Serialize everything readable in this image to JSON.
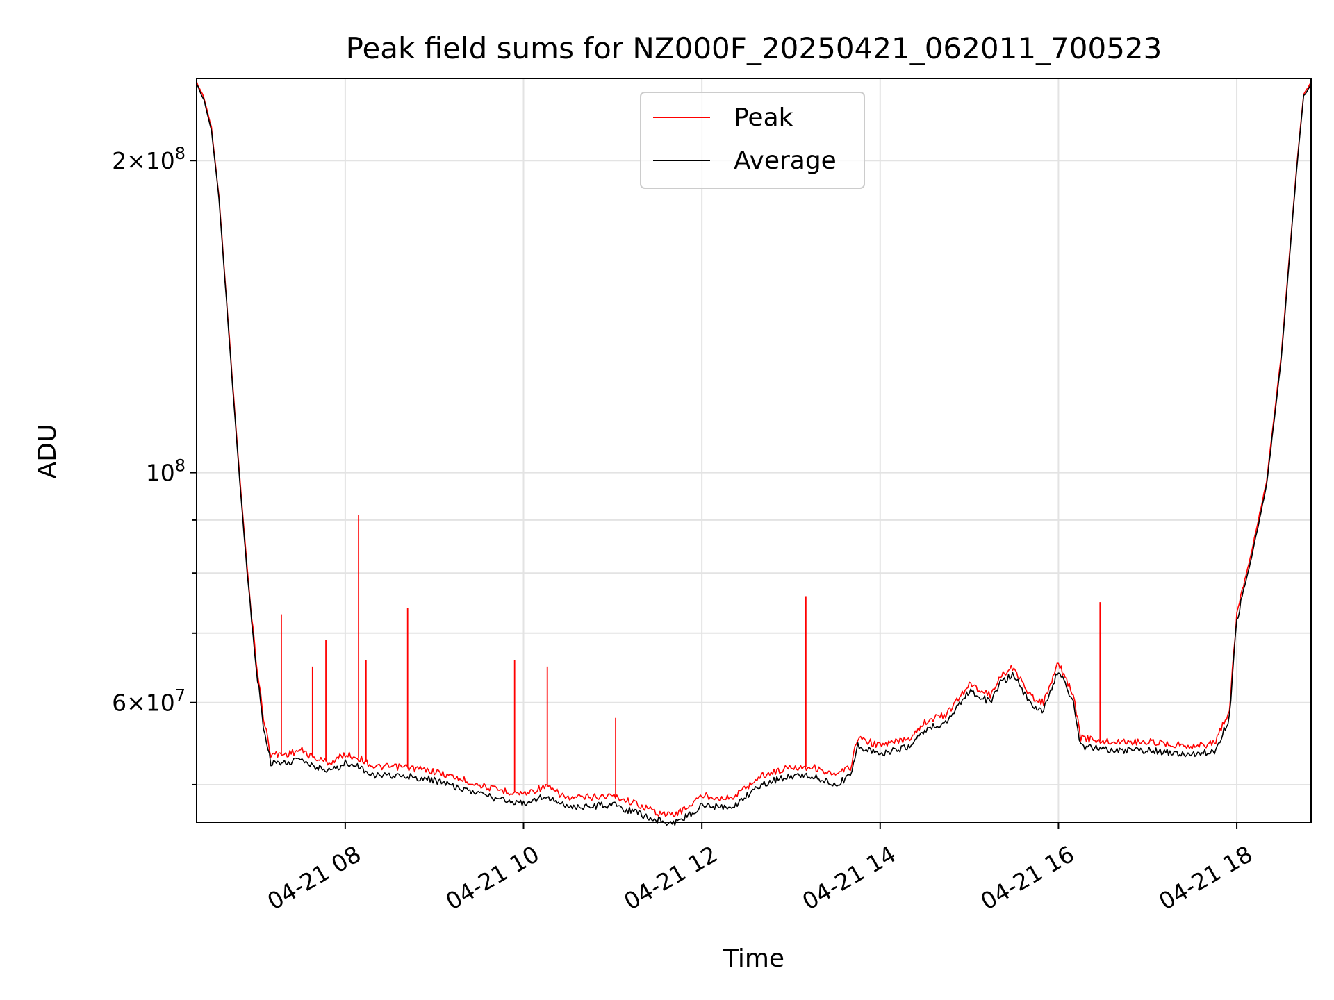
{
  "chart_data": {
    "type": "line",
    "title": "Peak field sums for NZ000F_20250421_062011_700523",
    "xlabel": "Time",
    "ylabel": "ADU",
    "y_scale": "log",
    "ylim": [
      46000000,
      240000000
    ],
    "xlim": [
      "2025-04-21 06:20",
      "2025-04-21 18:50"
    ],
    "grid": true,
    "legend_position": "top-center",
    "x_ticks": [
      {
        "t": "2025-04-21 08:00",
        "label": "04-21 08"
      },
      {
        "t": "2025-04-21 10:00",
        "label": "04-21 10"
      },
      {
        "t": "2025-04-21 12:00",
        "label": "04-21 12"
      },
      {
        "t": "2025-04-21 14:00",
        "label": "04-21 14"
      },
      {
        "t": "2025-04-21 16:00",
        "label": "04-21 16"
      },
      {
        "t": "2025-04-21 18:00",
        "label": "04-21 18"
      }
    ],
    "y_major_ticks": [
      {
        "value": 200000000,
        "mantissa": "2",
        "exp": "8"
      },
      {
        "value": 100000000,
        "mantissa": "",
        "exp": "8"
      },
      {
        "value": 60000000,
        "mantissa": "6",
        "exp": "7"
      }
    ],
    "y_minor_ticks": [
      50000000,
      70000000,
      80000000,
      90000000
    ],
    "series": [
      {
        "name": "Peak",
        "color": "#ff0000",
        "points": [
          [
            "2025-04-21 06:20",
            238000000
          ],
          [
            "2025-04-21 06:25",
            230000000
          ],
          [
            "2025-04-21 06:30",
            215000000
          ],
          [
            "2025-04-21 06:35",
            185000000
          ],
          [
            "2025-04-21 06:40",
            148000000
          ],
          [
            "2025-04-21 06:45",
            118000000
          ],
          [
            "2025-04-21 06:50",
            95000000
          ],
          [
            "2025-04-21 06:55",
            78000000
          ],
          [
            "2025-04-21 07:00",
            66000000
          ],
          [
            "2025-04-21 07:05",
            58000000
          ],
          [
            "2025-04-21 07:10",
            53500000
          ],
          [
            "2025-04-21 07:20",
            53500000
          ],
          [
            "2025-04-21 07:30",
            54000000
          ],
          [
            "2025-04-21 07:40",
            53000000
          ],
          [
            "2025-04-21 07:50",
            52500000
          ],
          [
            "2025-04-21 08:00",
            53500000
          ],
          [
            "2025-04-21 08:10",
            53000000
          ],
          [
            "2025-04-21 08:20",
            52000000
          ],
          [
            "2025-04-21 08:40",
            52000000
          ],
          [
            "2025-04-21 09:00",
            51500000
          ],
          [
            "2025-04-21 09:20",
            50500000
          ],
          [
            "2025-04-21 09:40",
            49500000
          ],
          [
            "2025-04-21 10:00",
            49000000
          ],
          [
            "2025-04-21 10:15",
            49800000
          ],
          [
            "2025-04-21 10:30",
            48500000
          ],
          [
            "2025-04-21 11:00",
            48800000
          ],
          [
            "2025-04-21 11:15",
            48000000
          ],
          [
            "2025-04-21 11:30",
            47000000
          ],
          [
            "2025-04-21 11:40",
            46700000
          ],
          [
            "2025-04-21 11:50",
            47500000
          ],
          [
            "2025-04-21 12:00",
            48800000
          ],
          [
            "2025-04-21 12:20",
            48500000
          ],
          [
            "2025-04-21 12:40",
            51000000
          ],
          [
            "2025-04-21 13:00",
            52000000
          ],
          [
            "2025-04-21 13:15",
            52000000
          ],
          [
            "2025-04-21 13:30",
            51000000
          ],
          [
            "2025-04-21 13:40",
            52000000
          ],
          [
            "2025-04-21 13:45",
            55500000
          ],
          [
            "2025-04-21 14:00",
            54500000
          ],
          [
            "2025-04-21 14:20",
            55500000
          ],
          [
            "2025-04-21 14:30",
            57500000
          ],
          [
            "2025-04-21 14:45",
            58500000
          ],
          [
            "2025-04-21 15:00",
            62500000
          ],
          [
            "2025-04-21 15:15",
            61000000
          ],
          [
            "2025-04-21 15:20",
            63500000
          ],
          [
            "2025-04-21 15:30",
            65000000
          ],
          [
            "2025-04-21 15:40",
            61000000
          ],
          [
            "2025-04-21 15:50",
            60000000
          ],
          [
            "2025-04-21 16:00",
            65500000
          ],
          [
            "2025-04-21 16:10",
            61000000
          ],
          [
            "2025-04-21 16:15",
            55500000
          ],
          [
            "2025-04-21 16:30",
            55000000
          ],
          [
            "2025-04-21 17:00",
            55000000
          ],
          [
            "2025-04-21 17:30",
            54500000
          ],
          [
            "2025-04-21 17:45",
            54800000
          ],
          [
            "2025-04-21 17:55",
            59000000
          ],
          [
            "2025-04-21 18:00",
            73000000
          ],
          [
            "2025-04-21 18:10",
            84000000
          ],
          [
            "2025-04-21 18:20",
            98000000
          ],
          [
            "2025-04-21 18:30",
            130000000
          ],
          [
            "2025-04-21 18:40",
            195000000
          ],
          [
            "2025-04-21 18:45",
            232000000
          ],
          [
            "2025-04-21 18:50",
            238000000
          ]
        ],
        "spikes": [
          [
            "2025-04-21 07:17",
            73000000
          ],
          [
            "2025-04-21 07:38",
            65000000
          ],
          [
            "2025-04-21 07:47",
            69000000
          ],
          [
            "2025-04-21 08:09",
            91000000
          ],
          [
            "2025-04-21 08:14",
            66000000
          ],
          [
            "2025-04-21 08:42",
            74000000
          ],
          [
            "2025-04-21 09:54",
            66000000
          ],
          [
            "2025-04-21 10:16",
            65000000
          ],
          [
            "2025-04-21 11:02",
            58000000
          ],
          [
            "2025-04-21 13:10",
            76000000
          ],
          [
            "2025-04-21 16:28",
            75000000
          ]
        ]
      },
      {
        "name": "Average",
        "color": "#000000",
        "points": [
          [
            "2025-04-21 06:20",
            237000000
          ],
          [
            "2025-04-21 06:25",
            229000000
          ],
          [
            "2025-04-21 06:30",
            214000000
          ],
          [
            "2025-04-21 06:35",
            184000000
          ],
          [
            "2025-04-21 06:40",
            147000000
          ],
          [
            "2025-04-21 06:45",
            117000000
          ],
          [
            "2025-04-21 06:50",
            94000000
          ],
          [
            "2025-04-21 06:55",
            77000000
          ],
          [
            "2025-04-21 07:00",
            65000000
          ],
          [
            "2025-04-21 07:05",
            57000000
          ],
          [
            "2025-04-21 07:10",
            52500000
          ],
          [
            "2025-04-21 07:20",
            52500000
          ],
          [
            "2025-04-21 07:30",
            53000000
          ],
          [
            "2025-04-21 07:40",
            52000000
          ],
          [
            "2025-04-21 07:50",
            51500000
          ],
          [
            "2025-04-21 08:00",
            52500000
          ],
          [
            "2025-04-21 08:10",
            52000000
          ],
          [
            "2025-04-21 08:20",
            51000000
          ],
          [
            "2025-04-21 08:40",
            51000000
          ],
          [
            "2025-04-21 09:00",
            50500000
          ],
          [
            "2025-04-21 09:20",
            49500000
          ],
          [
            "2025-04-21 09:40",
            48500000
          ],
          [
            "2025-04-21 10:00",
            48000000
          ],
          [
            "2025-04-21 10:15",
            48800000
          ],
          [
            "2025-04-21 10:30",
            47500000
          ],
          [
            "2025-04-21 11:00",
            47800000
          ],
          [
            "2025-04-21 11:15",
            47000000
          ],
          [
            "2025-04-21 11:30",
            46200000
          ],
          [
            "2025-04-21 11:40",
            45900000
          ],
          [
            "2025-04-21 11:50",
            46600000
          ],
          [
            "2025-04-21 12:00",
            47800000
          ],
          [
            "2025-04-21 12:20",
            47500000
          ],
          [
            "2025-04-21 12:40",
            50000000
          ],
          [
            "2025-04-21 13:00",
            51000000
          ],
          [
            "2025-04-21 13:15",
            51000000
          ],
          [
            "2025-04-21 13:30",
            50000000
          ],
          [
            "2025-04-21 13:40",
            51000000
          ],
          [
            "2025-04-21 13:45",
            54500000
          ],
          [
            "2025-04-21 14:00",
            53500000
          ],
          [
            "2025-04-21 14:20",
            54500000
          ],
          [
            "2025-04-21 14:30",
            56500000
          ],
          [
            "2025-04-21 14:45",
            57500000
          ],
          [
            "2025-04-21 15:00",
            61500000
          ],
          [
            "2025-04-21 15:15",
            60000000
          ],
          [
            "2025-04-21 15:20",
            62500000
          ],
          [
            "2025-04-21 15:30",
            64000000
          ],
          [
            "2025-04-21 15:40",
            60000000
          ],
          [
            "2025-04-21 15:50",
            59000000
          ],
          [
            "2025-04-21 16:00",
            64500000
          ],
          [
            "2025-04-21 16:10",
            60000000
          ],
          [
            "2025-04-21 16:15",
            54500000
          ],
          [
            "2025-04-21 16:30",
            54000000
          ],
          [
            "2025-04-21 17:00",
            54000000
          ],
          [
            "2025-04-21 17:30",
            53500000
          ],
          [
            "2025-04-21 17:45",
            53800000
          ],
          [
            "2025-04-21 17:55",
            58000000
          ],
          [
            "2025-04-21 18:00",
            72000000
          ],
          [
            "2025-04-21 18:10",
            83000000
          ],
          [
            "2025-04-21 18:20",
            97000000
          ],
          [
            "2025-04-21 18:30",
            129000000
          ],
          [
            "2025-04-21 18:40",
            194000000
          ],
          [
            "2025-04-21 18:45",
            231000000
          ],
          [
            "2025-04-21 18:50",
            237000000
          ]
        ]
      }
    ]
  }
}
